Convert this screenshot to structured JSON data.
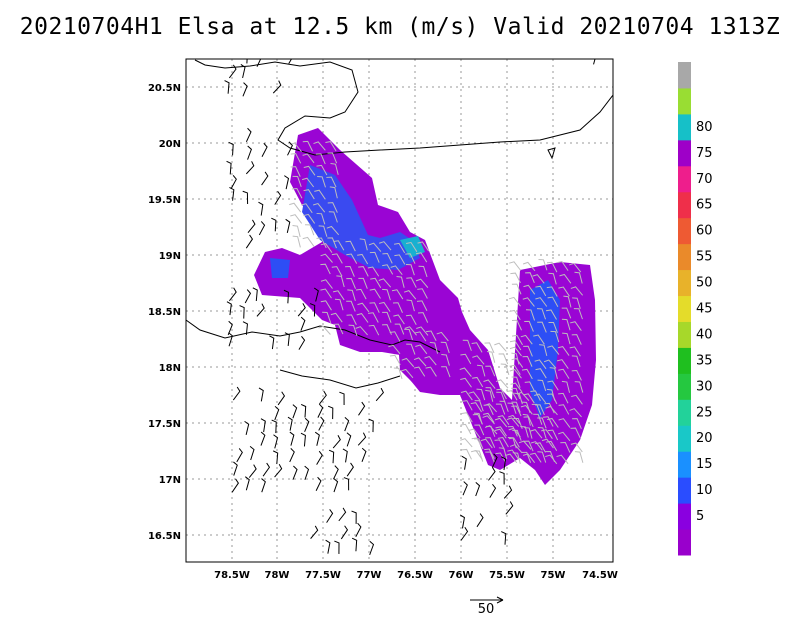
{
  "title": "20210704H1 Elsa at 12.5 km (m/s) Valid 20210704 1313Z",
  "lon_ticks": [
    "78.5W",
    "78W",
    "77.5W",
    "77W",
    "76.5W",
    "76W",
    "75.5W",
    "75W",
    "74.5W"
  ],
  "lat_ticks": [
    "20.5N",
    "20N",
    "19.5N",
    "19N",
    "18.5N",
    "18N",
    "17.5N",
    "17N",
    "16.5N"
  ],
  "colorbar": {
    "labels": [
      "5",
      "10",
      "15",
      "20",
      "25",
      "30",
      "35",
      "40",
      "45",
      "50",
      "55",
      "60",
      "65",
      "70",
      "75",
      "80"
    ],
    "colors": [
      "#9900cc",
      "#8a00e0",
      "#2a4dff",
      "#1a90ff",
      "#19c8c8",
      "#22d29a",
      "#25c840",
      "#1fbf1f",
      "#a7d82a",
      "#e4dc2a",
      "#e8b22a",
      "#ea8a2a",
      "#ee5a33",
      "#ef2f4a",
      "#ee1e8c",
      "#9e00c8",
      "#16c0c8",
      "#99dd33",
      "#a8a8a8"
    ]
  },
  "reference_vector": {
    "label": "50"
  }
}
